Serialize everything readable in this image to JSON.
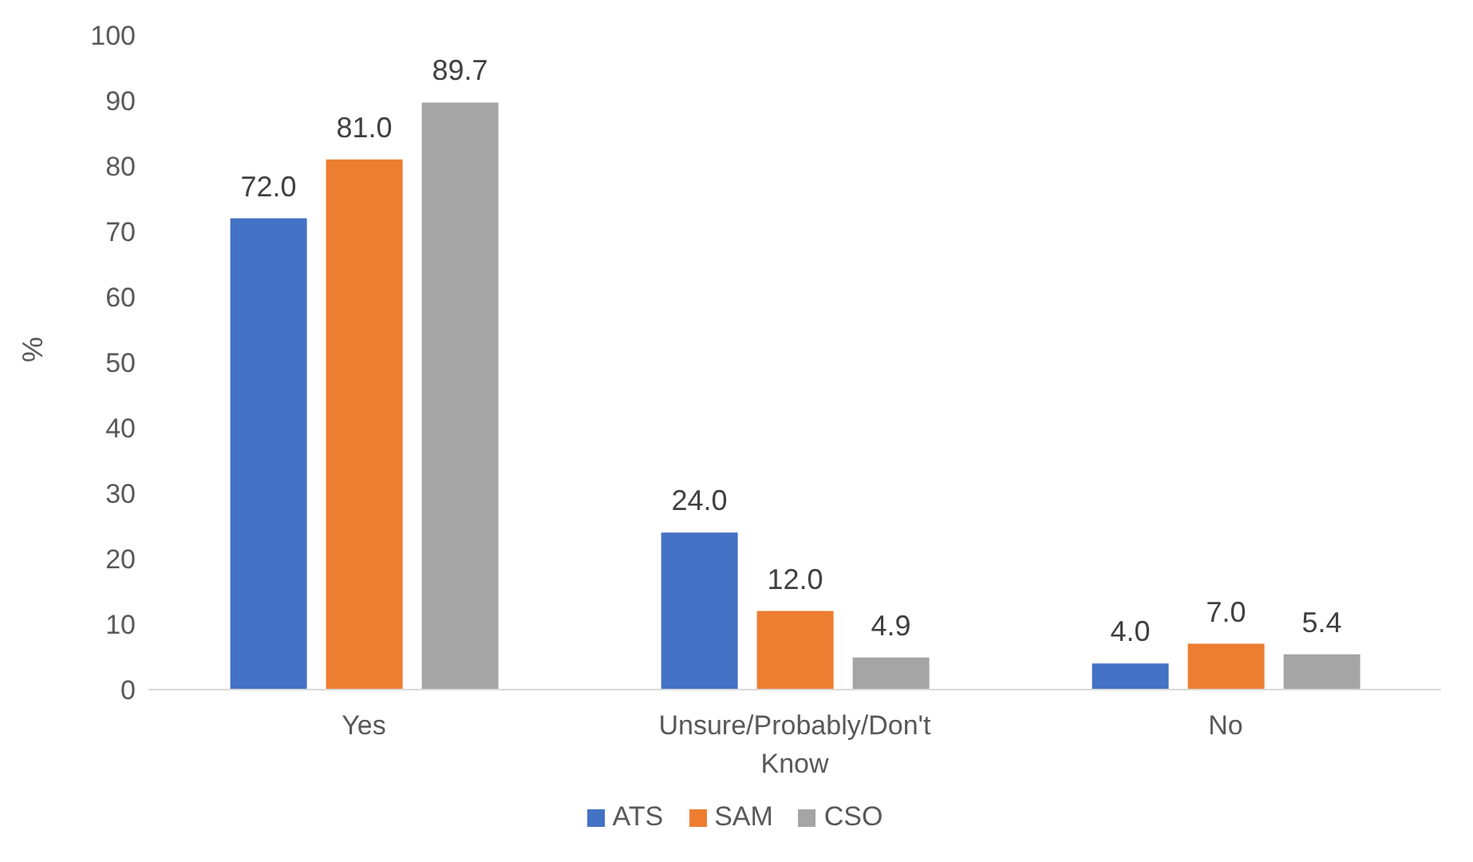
{
  "chart_data": {
    "type": "bar",
    "ylabel": "%",
    "categories": [
      "Yes",
      "Unsure/Probably/Don't Know",
      "No"
    ],
    "series": [
      {
        "name": "ATS",
        "color": "#4472c4",
        "values": [
          72.0,
          24.0,
          4.0
        ],
        "value_labels": [
          "72.0",
          "24.0",
          "4.0"
        ]
      },
      {
        "name": "SAM",
        "color": "#ed7d31",
        "values": [
          81.0,
          12.0,
          7.0
        ],
        "value_labels": [
          "81.0",
          "12.0",
          "7.0"
        ]
      },
      {
        "name": "CSO",
        "color": "#a5a5a5",
        "values": [
          89.7,
          4.9,
          5.4
        ],
        "value_labels": [
          "89.7",
          "4.9",
          "5.4"
        ]
      }
    ],
    "ylim": [
      0,
      100
    ],
    "yticks": [
      0,
      10,
      20,
      30,
      40,
      50,
      60,
      70,
      80,
      90,
      100
    ],
    "grid": false,
    "legend": "bottom"
  }
}
